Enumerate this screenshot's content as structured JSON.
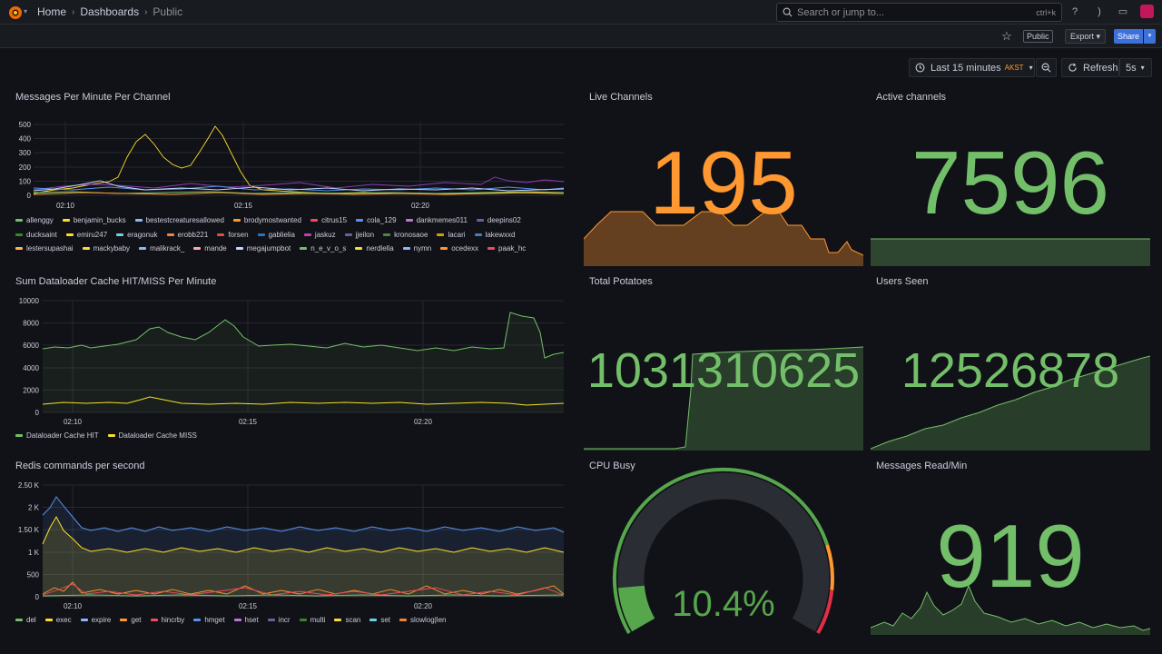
{
  "breadcrumbs": [
    "Home",
    "Dashboards",
    "Public"
  ],
  "search": {
    "placeholder": "Search or jump to...",
    "shortcut": "ctrl+k"
  },
  "toolbar": {
    "public_badge": "Public",
    "export_label": "Export",
    "share_label": "Share"
  },
  "time": {
    "range_label": "Last 15 minutes",
    "tz": "AKST",
    "refresh_label": "Refresh",
    "interval": "5s"
  },
  "colors": {
    "green": "#73bf69",
    "orange": "#ff9830",
    "yellow": "#fade2a",
    "red": "#f2495c",
    "blue": "#5794f2",
    "purple": "#b877d9"
  },
  "panels": {
    "messages": {
      "title": "Messages Per Minute Per Channel",
      "legend": [
        {
          "name": "allenggy",
          "color": "#73bf69"
        },
        {
          "name": "benjamin_bucks",
          "color": "#fade2a"
        },
        {
          "name": "bestestcreaturesallowed",
          "color": "#8ab8ff"
        },
        {
          "name": "brodymostwanted",
          "color": "#ff9830"
        },
        {
          "name": "citrus15",
          "color": "#f2495c"
        },
        {
          "name": "cola_129",
          "color": "#5794f2"
        },
        {
          "name": "dankmemes011",
          "color": "#b877d9"
        },
        {
          "name": "deepins02",
          "color": "#705da0"
        },
        {
          "name": "ducksaint",
          "color": "#37872d"
        },
        {
          "name": "emiru247",
          "color": "#fade2a"
        },
        {
          "name": "eragonuk",
          "color": "#6ed0e0"
        },
        {
          "name": "erobb221",
          "color": "#ef843c"
        },
        {
          "name": "forsen",
          "color": "#e24d42"
        },
        {
          "name": "gablielia",
          "color": "#1f78c1"
        },
        {
          "name": "jaskuz",
          "color": "#ba43a9"
        },
        {
          "name": "jjeilon",
          "color": "#705da0"
        },
        {
          "name": "kronosaoe",
          "color": "#508642"
        },
        {
          "name": "lacari",
          "color": "#cca300"
        },
        {
          "name": "lakewxxd",
          "color": "#447ebc"
        },
        {
          "name": "lestersupashai",
          "color": "#ffb357"
        },
        {
          "name": "mackybaby",
          "color": "#fade2a"
        },
        {
          "name": "malikrack_",
          "color": "#8ab8ff"
        },
        {
          "name": "mande",
          "color": "#ffa6b0"
        },
        {
          "name": "megajumpbot",
          "color": "#c0d8ff"
        },
        {
          "name": "n_e_v_o_s",
          "color": "#73bf69"
        },
        {
          "name": "nerdlella",
          "color": "#fade2a"
        },
        {
          "name": "nymn",
          "color": "#8ab8ff"
        },
        {
          "name": "ocedexx",
          "color": "#ff9830"
        },
        {
          "name": "paak_hc",
          "color": "#f2495c"
        }
      ],
      "yticks": [
        "0",
        "100",
        "200",
        "300",
        "400",
        "500"
      ],
      "xticks": [
        "02:10",
        "02:15",
        "02:20"
      ]
    },
    "live": {
      "title": "Live Channels",
      "value": "195"
    },
    "active": {
      "title": "Active channels",
      "value": "7596"
    },
    "cache": {
      "title": "Sum Dataloader Cache HIT/MISS Per Minute",
      "yticks": [
        "0",
        "2000",
        "4000",
        "6000",
        "8000",
        "10000"
      ],
      "xticks": [
        "02:10",
        "02:15",
        "02:20"
      ],
      "legend": [
        {
          "name": "Dataloader Cache HIT",
          "color": "#73bf69"
        },
        {
          "name": "Dataloader Cache MISS",
          "color": "#fade2a"
        }
      ]
    },
    "potatoes": {
      "title": "Total Potatoes",
      "value": "1031310625"
    },
    "users": {
      "title": "Users Seen",
      "value": "12526878"
    },
    "redis": {
      "title": "Redis commands per second",
      "yticks": [
        "0",
        "500",
        "1 K",
        "1.50 K",
        "2 K",
        "2.50 K"
      ],
      "xticks": [
        "02:10",
        "02:15",
        "02:20"
      ],
      "legend": [
        {
          "name": "del",
          "color": "#73bf69"
        },
        {
          "name": "exec",
          "color": "#fade2a"
        },
        {
          "name": "expire",
          "color": "#8ab8ff"
        },
        {
          "name": "get",
          "color": "#ff9830"
        },
        {
          "name": "hincrby",
          "color": "#f2495c"
        },
        {
          "name": "hmget",
          "color": "#5794f2"
        },
        {
          "name": "hset",
          "color": "#b877d9"
        },
        {
          "name": "incr",
          "color": "#705da0"
        },
        {
          "name": "multi",
          "color": "#37872d"
        },
        {
          "name": "scan",
          "color": "#fade2a"
        },
        {
          "name": "set",
          "color": "#6ed0e0"
        },
        {
          "name": "slowlog|len",
          "color": "#ef843c"
        }
      ]
    },
    "cpu": {
      "title": "CPU Busy",
      "value": "10.4%",
      "percent": 10.4
    },
    "msgread": {
      "title": "Messages Read/Min",
      "value": "919"
    }
  }
}
